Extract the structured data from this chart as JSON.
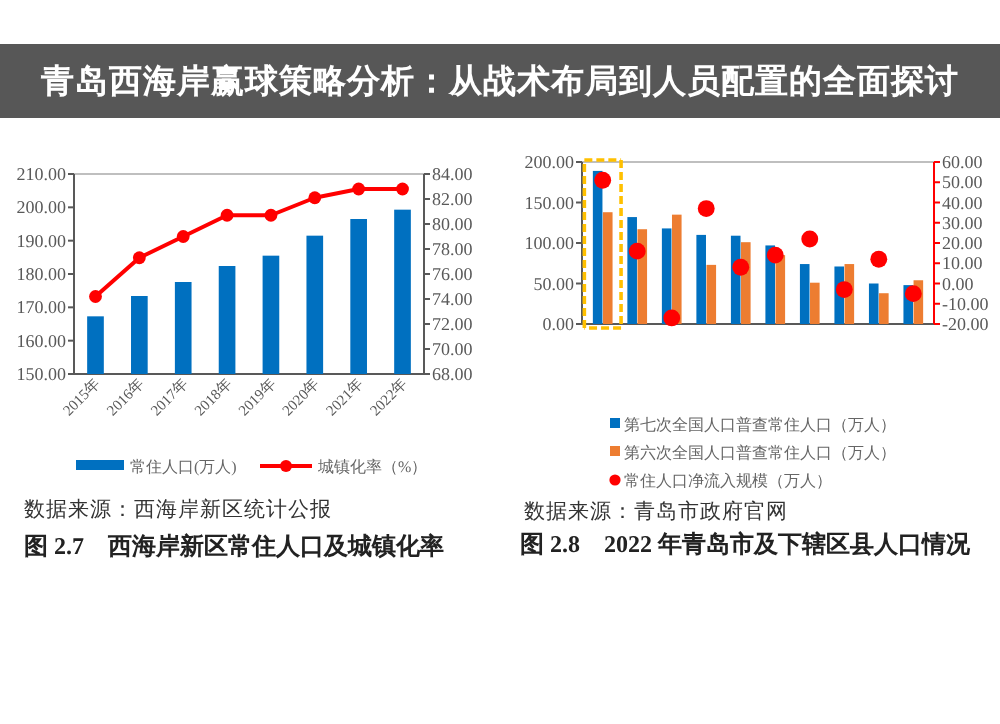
{
  "chart_data": [
    {
      "type": "bar",
      "title": "图 2.7    西海岸新区常住人口及城镇化率",
      "categories": [
        "2015年",
        "2016年",
        "2017年",
        "2018年",
        "2019年",
        "2020年",
        "2021年",
        "2022年"
      ],
      "series": [
        {
          "name": "常住人口(万人)",
          "color": "#0070c0",
          "values": [
            167.3,
            173.4,
            177.6,
            182.4,
            185.5,
            191.5,
            196.5,
            199.3
          ]
        },
        {
          "name": "城镇化率（%）",
          "type": "line",
          "axis": "y2",
          "color": "#ff0000",
          "values": [
            74.2,
            77.3,
            79.0,
            80.7,
            80.7,
            82.1,
            82.8,
            82.8
          ]
        }
      ],
      "ylim": [
        150,
        210
      ],
      "yticks": [
        {
          "value": 150,
          "label": "150.00"
        },
        {
          "value": 160,
          "label": "160.00"
        },
        {
          "value": 170,
          "label": "170.00"
        },
        {
          "value": 180,
          "label": "180.00"
        },
        {
          "value": 190,
          "label": "190.00"
        },
        {
          "value": 200,
          "label": "200.00"
        },
        {
          "value": 210,
          "label": "210.00"
        }
      ],
      "y2lim": [
        68,
        84
      ],
      "y2ticks": [
        {
          "value": 68,
          "label": "68.00"
        },
        {
          "value": 70,
          "label": "70.00"
        },
        {
          "value": 72,
          "label": "72.00"
        },
        {
          "value": 74,
          "label": "74.00"
        },
        {
          "value": 76,
          "label": "76.00"
        },
        {
          "value": 78,
          "label": "78.00"
        },
        {
          "value": 80,
          "label": "80.00"
        },
        {
          "value": 82,
          "label": "82.00"
        },
        {
          "value": 84,
          "label": "84.00"
        }
      ],
      "marker": "circle",
      "legend": "bottom",
      "grid": false,
      "annotations": [
        "数据来源：西海岸新区统计公报",
        "青岛西海岸赢球策略分析：从战术布局到人员配置的全面探讨"
      ]
    },
    {
      "type": "bar",
      "title": "图 2.8    2022 年青岛市及下辖区县人口情况",
      "categories": [
        null,
        null,
        null,
        null,
        null,
        null,
        null,
        null,
        null,
        null
      ],
      "series": [
        {
          "name": "第七次全国人口普查常住人口（万人）",
          "color": "#0070c0",
          "values": [
            189,
            132,
            118,
            110,
            109,
            97,
            74,
            71,
            50,
            48
          ]
        },
        {
          "name": "第六次全国人口普查常住人口（万人）",
          "color": "#ed7d31",
          "values": [
            138,
            117,
            135,
            73,
            101,
            85,
            51,
            74,
            38,
            54
          ]
        },
        {
          "name": "常住人口净流入规模（万人）",
          "type": "scatter",
          "axis": "y2",
          "color": "#ff0000",
          "values": [
            51,
            16,
            -17,
            37,
            8,
            14,
            22,
            -3,
            12,
            -5
          ]
        }
      ],
      "ylim": [
        0,
        200
      ],
      "yticks": [
        {
          "value": 0,
          "label": "0.00"
        },
        {
          "value": 50,
          "label": "50.00"
        },
        {
          "value": 100,
          "label": "100.00"
        },
        {
          "value": 150,
          "label": "150.00"
        },
        {
          "value": 200,
          "label": "200.00"
        }
      ],
      "y2lim": [
        -20,
        60
      ],
      "y2ticks": [
        {
          "value": -20,
          "label": "-20.00"
        },
        {
          "value": -10,
          "label": "-10.00"
        },
        {
          "value": 0,
          "label": "0.00"
        },
        {
          "value": 10,
          "label": "10.00"
        },
        {
          "value": 20,
          "label": "20.00"
        },
        {
          "value": 30,
          "label": "30.00"
        },
        {
          "value": 40,
          "label": "40.00"
        },
        {
          "value": 50,
          "label": "50.00"
        },
        {
          "value": 60,
          "label": "60.00"
        }
      ],
      "marker": "circle",
      "legend": "bottom",
      "grid": false,
      "annotations": [
        "数据来源：青岛市政府官网"
      ]
    }
  ]
}
